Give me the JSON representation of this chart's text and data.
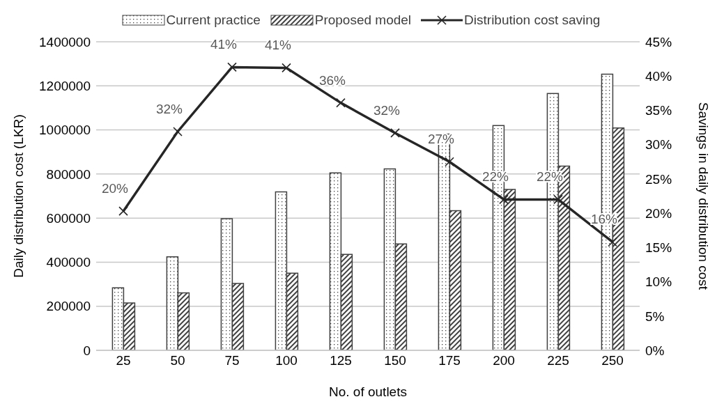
{
  "chart_data": {
    "type": "bar",
    "xlabel": "No. of outlets",
    "ylabel": "Daily distribution cost (LKR)",
    "y2label": "Savings in daily distribution cost",
    "categories": [
      "25",
      "50",
      "75",
      "100",
      "125",
      "150",
      "175",
      "200",
      "225",
      "250"
    ],
    "series": [
      {
        "name": "Current practice",
        "color": "#404040",
        "values": [
          284000,
          424000,
          597000,
          719000,
          805000,
          823000,
          981000,
          1020000,
          1165000,
          1253000
        ]
      },
      {
        "name": "Proposed model",
        "color": "#404040",
        "values": [
          215000,
          261000,
          303000,
          350000,
          435000,
          483000,
          634000,
          730000,
          836000,
          1009000
        ]
      },
      {
        "name": "Distribution cost saving",
        "type": "line",
        "axis": "y2",
        "color": "#262626",
        "marker": "cross",
        "values": [
          20.3,
          31.9,
          41.3,
          41.2,
          36.1,
          31.7,
          27.5,
          22.0,
          22.0,
          15.8
        ],
        "value_labels": [
          "20%",
          "32%",
          "41%",
          "41%",
          "36%",
          "32%",
          "27%",
          "22%",
          "22%",
          "16%"
        ]
      }
    ],
    "ylim": [
      0,
      1400000
    ],
    "yticks": [
      0,
      200000,
      400000,
      600000,
      800000,
      1000000,
      1200000,
      1400000
    ],
    "y2lim": [
      0,
      45
    ],
    "y2ticks": [
      {
        "value": 0,
        "label": "0%"
      },
      {
        "value": 5,
        "label": "5%"
      },
      {
        "value": 10,
        "label": "10%"
      },
      {
        "value": 15,
        "label": "15%"
      },
      {
        "value": 20,
        "label": "20%"
      },
      {
        "value": 25,
        "label": "25%"
      },
      {
        "value": 30,
        "label": "30%"
      },
      {
        "value": 35,
        "label": "35%"
      },
      {
        "value": 40,
        "label": "40%"
      },
      {
        "value": 45,
        "label": "45%"
      }
    ],
    "grid": "y",
    "legend": "top"
  }
}
